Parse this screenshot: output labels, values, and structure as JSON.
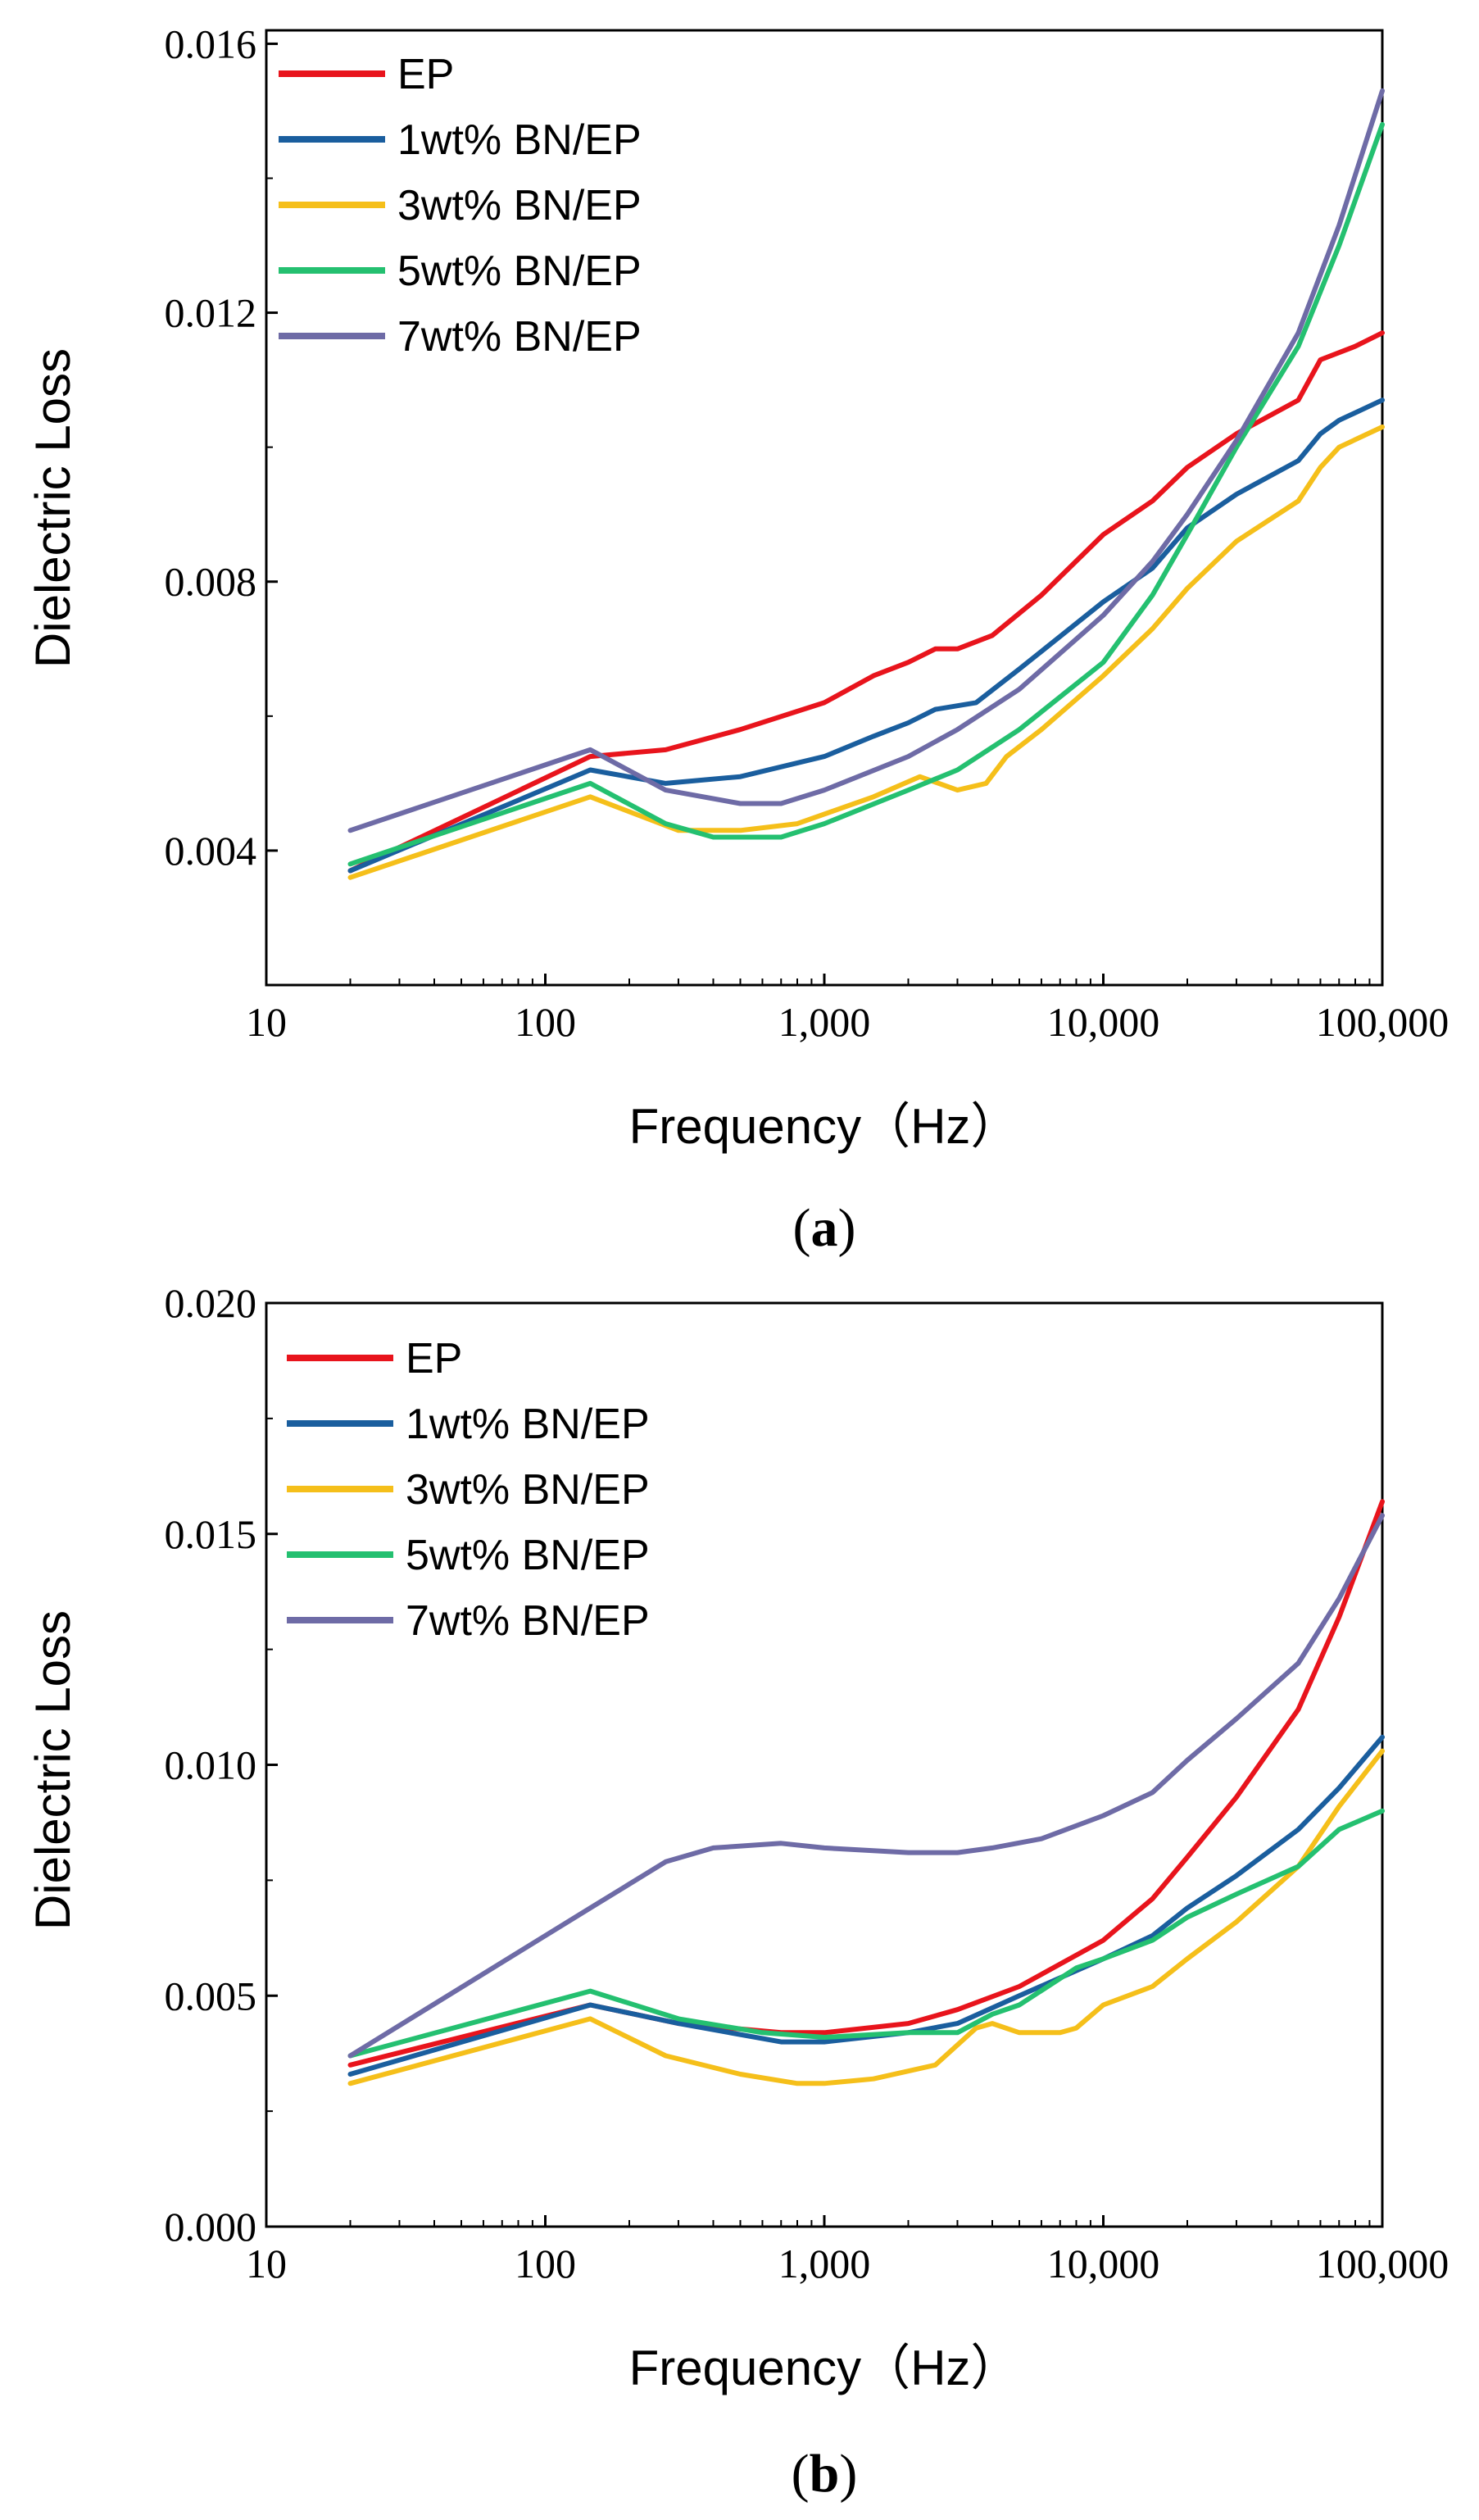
{
  "chart_data": [
    {
      "type": "line",
      "label": "a",
      "xlabel": "Frequency（Hz）",
      "ylabel": "Dielectric Loss",
      "xscale": "log",
      "xlim": [
        10,
        100000
      ],
      "ylim": [
        0.002,
        0.0162
      ],
      "xticks": [
        10,
        100,
        1000,
        10000,
        100000
      ],
      "xtick_labels": [
        "10",
        "100",
        "1,000",
        "10,000",
        "100,000"
      ],
      "yticks": [
        0.004,
        0.008,
        0.012,
        0.016
      ],
      "ytick_labels": [
        "0.004",
        "0.008",
        "0.012",
        "0.016"
      ],
      "legend_position": "top-left",
      "series": [
        {
          "name": "EP",
          "color": "#e8141c",
          "points": [
            [
              20,
              0.0037
            ],
            [
              145,
              0.0054
            ],
            [
              270,
              0.0055
            ],
            [
              500,
              0.0058
            ],
            [
              1000,
              0.0062
            ],
            [
              1500,
              0.0066
            ],
            [
              2000,
              0.0068
            ],
            [
              2500,
              0.007
            ],
            [
              3000,
              0.007
            ],
            [
              4000,
              0.0072
            ],
            [
              6000,
              0.0078
            ],
            [
              10000,
              0.0087
            ],
            [
              15000,
              0.0092
            ],
            [
              20000,
              0.0097
            ],
            [
              30000,
              0.0102
            ],
            [
              50000,
              0.0107
            ],
            [
              60000,
              0.0113
            ],
            [
              80000,
              0.0115
            ],
            [
              100000,
              0.0117
            ]
          ]
        },
        {
          "name": "1wt% BN/EP",
          "color": "#1a5e9e",
          "points": [
            [
              20,
              0.0037
            ],
            [
              145,
              0.0052
            ],
            [
              270,
              0.005
            ],
            [
              500,
              0.0051
            ],
            [
              1000,
              0.0054
            ],
            [
              1500,
              0.0057
            ],
            [
              2000,
              0.0059
            ],
            [
              2500,
              0.0061
            ],
            [
              3500,
              0.0062
            ],
            [
              5000,
              0.0067
            ],
            [
              10000,
              0.0077
            ],
            [
              15000,
              0.0082
            ],
            [
              20000,
              0.0088
            ],
            [
              30000,
              0.0093
            ],
            [
              50000,
              0.0098
            ],
            [
              60000,
              0.0102
            ],
            [
              70000,
              0.0104
            ],
            [
              100000,
              0.0107
            ]
          ]
        },
        {
          "name": "3wt% BN/EP",
          "color": "#f5bf1a",
          "points": [
            [
              20,
              0.0036
            ],
            [
              145,
              0.0048
            ],
            [
              300,
              0.0043
            ],
            [
              500,
              0.0043
            ],
            [
              800,
              0.0044
            ],
            [
              1500,
              0.0048
            ],
            [
              2200,
              0.0051
            ],
            [
              3000,
              0.0049
            ],
            [
              3800,
              0.005
            ],
            [
              4500,
              0.0054
            ],
            [
              6000,
              0.0058
            ],
            [
              10000,
              0.0066
            ],
            [
              15000,
              0.0073
            ],
            [
              20000,
              0.0079
            ],
            [
              30000,
              0.0086
            ],
            [
              50000,
              0.0092
            ],
            [
              60000,
              0.0097
            ],
            [
              70000,
              0.01
            ],
            [
              100000,
              0.0103
            ]
          ]
        },
        {
          "name": "5wt% BN/EP",
          "color": "#24c070",
          "points": [
            [
              20,
              0.0038
            ],
            [
              145,
              0.005
            ],
            [
              270,
              0.0044
            ],
            [
              400,
              0.0042
            ],
            [
              700,
              0.0042
            ],
            [
              1000,
              0.0044
            ],
            [
              2000,
              0.0049
            ],
            [
              3000,
              0.0052
            ],
            [
              5000,
              0.0058
            ],
            [
              10000,
              0.0068
            ],
            [
              15000,
              0.0078
            ],
            [
              20000,
              0.0087
            ],
            [
              30000,
              0.01
            ],
            [
              50000,
              0.0115
            ],
            [
              70000,
              0.013
            ],
            [
              100000,
              0.0148
            ]
          ]
        },
        {
          "name": "7wt% BN/EP",
          "color": "#6e6ba6",
          "points": [
            [
              20,
              0.0043
            ],
            [
              145,
              0.0055
            ],
            [
              270,
              0.0049
            ],
            [
              500,
              0.0047
            ],
            [
              700,
              0.0047
            ],
            [
              1000,
              0.0049
            ],
            [
              2000,
              0.0054
            ],
            [
              3000,
              0.0058
            ],
            [
              5000,
              0.0064
            ],
            [
              10000,
              0.0075
            ],
            [
              15000,
              0.0083
            ],
            [
              20000,
              0.009
            ],
            [
              30000,
              0.0101
            ],
            [
              50000,
              0.0117
            ],
            [
              70000,
              0.0133
            ],
            [
              100000,
              0.0153
            ]
          ]
        }
      ]
    },
    {
      "type": "line",
      "label": "b",
      "xlabel": "Frequency（Hz）",
      "ylabel": "Dielectric Loss",
      "xscale": "log",
      "xlim": [
        10,
        100000
      ],
      "ylim": [
        0.0,
        0.02
      ],
      "xticks": [
        10,
        100,
        1000,
        10000,
        100000
      ],
      "xtick_labels": [
        "10",
        "100",
        "1,000",
        "10,000",
        "100,000"
      ],
      "yticks": [
        0.0,
        0.005,
        0.01,
        0.015,
        0.02
      ],
      "ytick_labels": [
        "0.000",
        "0.005",
        "0.010",
        "0.015",
        "0.020"
      ],
      "legend_position": "top-left",
      "series": [
        {
          "name": "EP",
          "color": "#e8141c",
          "points": [
            [
              20,
              0.0035
            ],
            [
              145,
              0.0048
            ],
            [
              300,
              0.0044
            ],
            [
              700,
              0.0042
            ],
            [
              1000,
              0.0042
            ],
            [
              2000,
              0.0044
            ],
            [
              3000,
              0.0047
            ],
            [
              5000,
              0.0052
            ],
            [
              10000,
              0.0062
            ],
            [
              15000,
              0.0071
            ],
            [
              20000,
              0.008
            ],
            [
              30000,
              0.0093
            ],
            [
              50000,
              0.0112
            ],
            [
              70000,
              0.0132
            ],
            [
              100000,
              0.0157
            ]
          ]
        },
        {
          "name": "1wt% BN/EP",
          "color": "#1a5e9e",
          "points": [
            [
              20,
              0.0033
            ],
            [
              145,
              0.0048
            ],
            [
              300,
              0.0044
            ],
            [
              700,
              0.004
            ],
            [
              1000,
              0.004
            ],
            [
              2000,
              0.0042
            ],
            [
              3000,
              0.0044
            ],
            [
              5000,
              0.005
            ],
            [
              10000,
              0.0058
            ],
            [
              15000,
              0.0063
            ],
            [
              20000,
              0.0069
            ],
            [
              30000,
              0.0076
            ],
            [
              50000,
              0.0086
            ],
            [
              70000,
              0.0095
            ],
            [
              100000,
              0.0106
            ]
          ]
        },
        {
          "name": "3wt% BN/EP",
          "color": "#f5bf1a",
          "points": [
            [
              20,
              0.0031
            ],
            [
              145,
              0.0045
            ],
            [
              270,
              0.0037
            ],
            [
              500,
              0.0033
            ],
            [
              800,
              0.0031
            ],
            [
              1000,
              0.0031
            ],
            [
              1500,
              0.0032
            ],
            [
              2500,
              0.0035
            ],
            [
              3500,
              0.0043
            ],
            [
              4000,
              0.0044
            ],
            [
              5000,
              0.0042
            ],
            [
              7000,
              0.0042
            ],
            [
              8000,
              0.0043
            ],
            [
              10000,
              0.0048
            ],
            [
              15000,
              0.0052
            ],
            [
              20000,
              0.0058
            ],
            [
              30000,
              0.0066
            ],
            [
              50000,
              0.0078
            ],
            [
              70000,
              0.0091
            ],
            [
              100000,
              0.0103
            ]
          ]
        },
        {
          "name": "5wt% BN/EP",
          "color": "#24c070",
          "points": [
            [
              20,
              0.0037
            ],
            [
              145,
              0.0051
            ],
            [
              300,
              0.0045
            ],
            [
              600,
              0.0042
            ],
            [
              1000,
              0.0041
            ],
            [
              2000,
              0.0042
            ],
            [
              3000,
              0.0042
            ],
            [
              4000,
              0.0046
            ],
            [
              5000,
              0.0048
            ],
            [
              8000,
              0.0056
            ],
            [
              10000,
              0.0058
            ],
            [
              15000,
              0.0062
            ],
            [
              20000,
              0.0067
            ],
            [
              30000,
              0.0072
            ],
            [
              50000,
              0.0078
            ],
            [
              70000,
              0.0086
            ],
            [
              100000,
              0.009
            ]
          ]
        },
        {
          "name": "7wt% BN/EP",
          "color": "#6e6ba6",
          "points": [
            [
              20,
              0.0037
            ],
            [
              145,
              0.0069
            ],
            [
              270,
              0.0079
            ],
            [
              400,
              0.0082
            ],
            [
              700,
              0.0083
            ],
            [
              1000,
              0.0082
            ],
            [
              2000,
              0.0081
            ],
            [
              3000,
              0.0081
            ],
            [
              4000,
              0.0082
            ],
            [
              6000,
              0.0084
            ],
            [
              10000,
              0.0089
            ],
            [
              15000,
              0.0094
            ],
            [
              20000,
              0.0101
            ],
            [
              30000,
              0.011
            ],
            [
              50000,
              0.0122
            ],
            [
              70000,
              0.0136
            ],
            [
              100000,
              0.0154
            ]
          ]
        }
      ]
    }
  ],
  "captions": [
    "(a)",
    "(b)"
  ],
  "caption_letters": [
    "a",
    "b"
  ]
}
